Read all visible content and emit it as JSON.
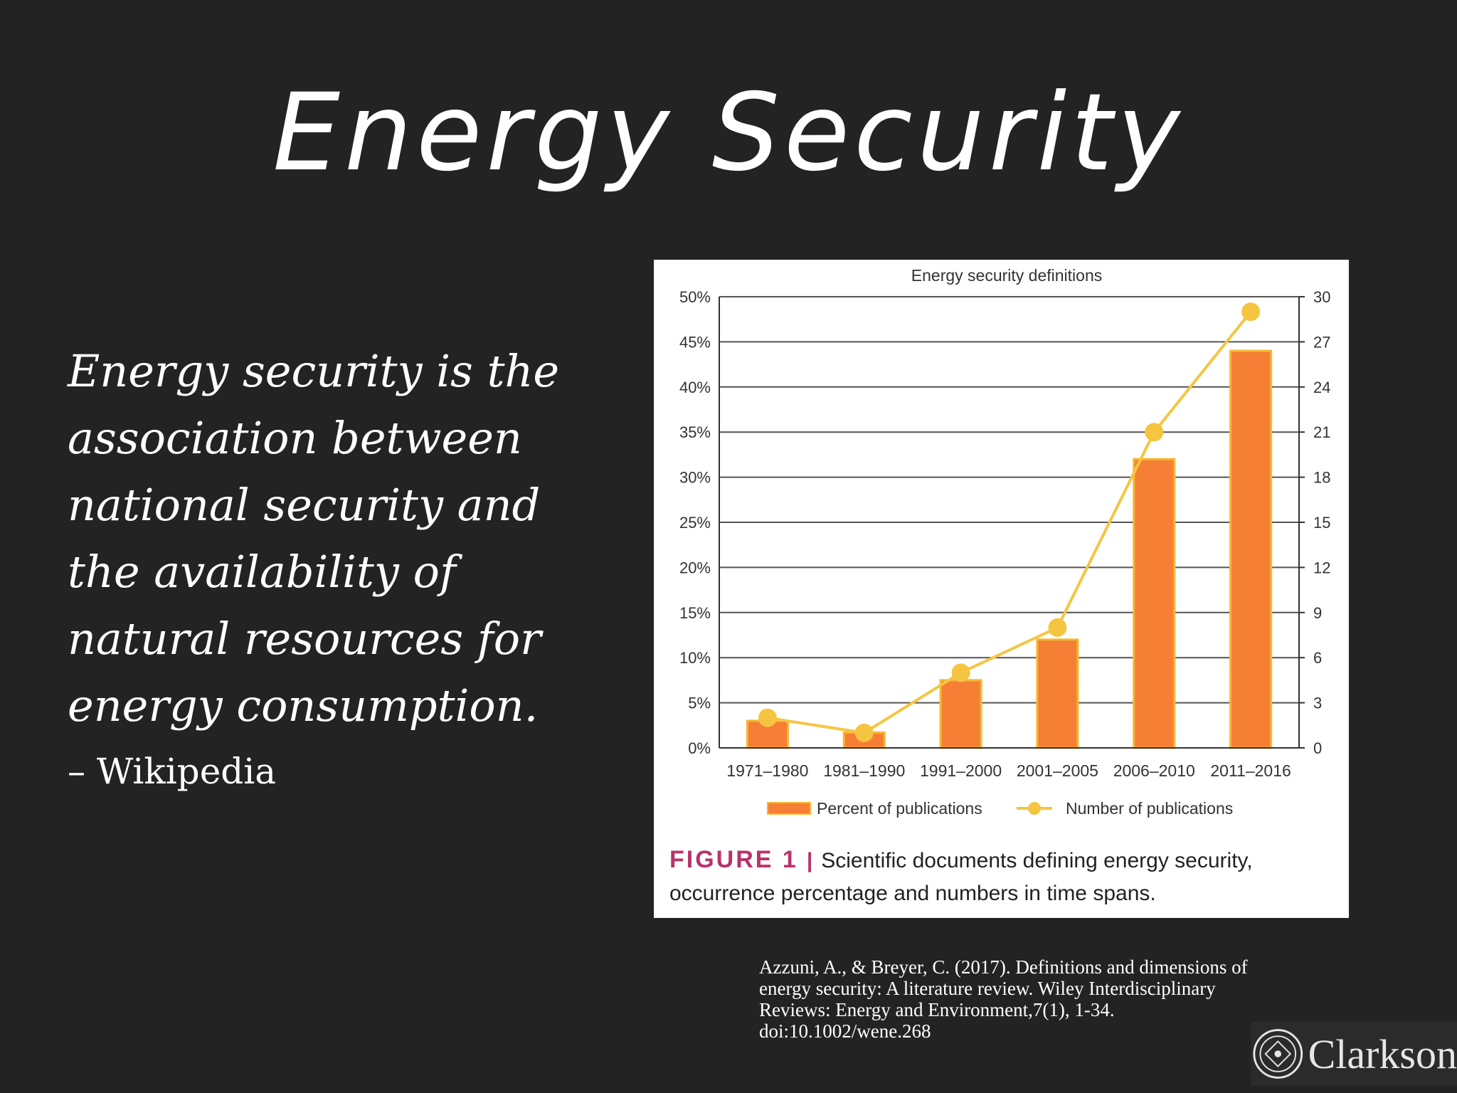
{
  "slide": {
    "title": "Energy Security",
    "quote": "Energy security is the association between national security and the availability of natural resources for energy consumption.",
    "attribution": "– Wikipedia",
    "citation": "Azzuni, A., & Breyer, C. (2017). Definitions and dimensions of energy security: A literature review. Wiley Interdisciplinary Reviews: Energy and Environment,7(1), 1-34. doi:10.1002/wene.268",
    "logo_text": "Clarkson"
  },
  "figure": {
    "label": "FIGURE 1",
    "caption": "Scientific documents defining energy security, occurrence percentage and numbers in time spans."
  },
  "chart_data": {
    "type": "bar",
    "title": "Energy security definitions",
    "categories": [
      "1971–1980",
      "1981–1990",
      "1991–2000",
      "2001–2005",
      "2006–2010",
      "2011–2016"
    ],
    "series": [
      {
        "name": "Percent of publications",
        "type": "bar",
        "axis": "left",
        "values": [
          3,
          1.7,
          7.5,
          12,
          32,
          44
        ]
      },
      {
        "name": "Number of publications",
        "type": "line",
        "axis": "right",
        "values": [
          2,
          1,
          5,
          8,
          21,
          29
        ]
      }
    ],
    "ylim_left": [
      0,
      50
    ],
    "ylim_right": [
      0,
      30
    ],
    "yticks_left": [
      "0%",
      "5%",
      "10%",
      "15%",
      "20%",
      "25%",
      "30%",
      "35%",
      "40%",
      "45%",
      "50%"
    ],
    "yticks_right": [
      "0",
      "3",
      "6",
      "9",
      "12",
      "15",
      "18",
      "21",
      "24",
      "27",
      "30"
    ],
    "grid": true,
    "legend_position": "bottom",
    "colors": {
      "bar": "#f57f35",
      "bar_border": "#f7b733",
      "line": "#f5c542",
      "grid": "#555555"
    }
  }
}
